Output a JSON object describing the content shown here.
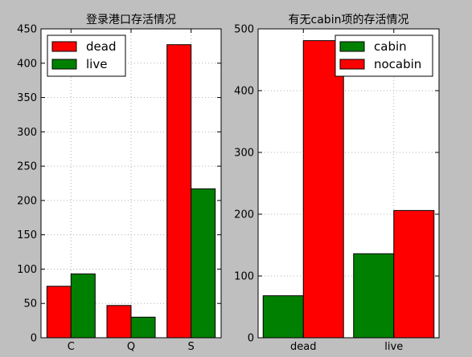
{
  "figure": {
    "background": "#bfbfbf"
  },
  "chart_data": [
    {
      "type": "bar",
      "title": "登录港口存活情况",
      "categories": [
        "C",
        "Q",
        "S"
      ],
      "series": [
        {
          "name": "dead",
          "color": "#ff0000",
          "values": [
            75,
            47,
            427
          ]
        },
        {
          "name": "live",
          "color": "#008000",
          "values": [
            93,
            30,
            217
          ]
        }
      ],
      "ylim": [
        0,
        450
      ],
      "yticks": [
        0,
        50,
        100,
        150,
        200,
        250,
        300,
        350,
        400,
        450
      ],
      "xlabel": "",
      "ylabel": "",
      "grid": true,
      "legend": "top-left"
    },
    {
      "type": "bar",
      "title": "有无cabin项的存活情况",
      "categories": [
        "dead",
        "live"
      ],
      "series": [
        {
          "name": "cabin",
          "color": "#008000",
          "values": [
            68,
            136
          ]
        },
        {
          "name": "nocabin",
          "color": "#ff0000",
          "values": [
            481,
            206
          ]
        }
      ],
      "ylim": [
        0,
        500
      ],
      "yticks": [
        0,
        100,
        200,
        300,
        400,
        500
      ],
      "xlabel": "",
      "ylabel": "",
      "grid": true,
      "legend": "top-right"
    }
  ]
}
